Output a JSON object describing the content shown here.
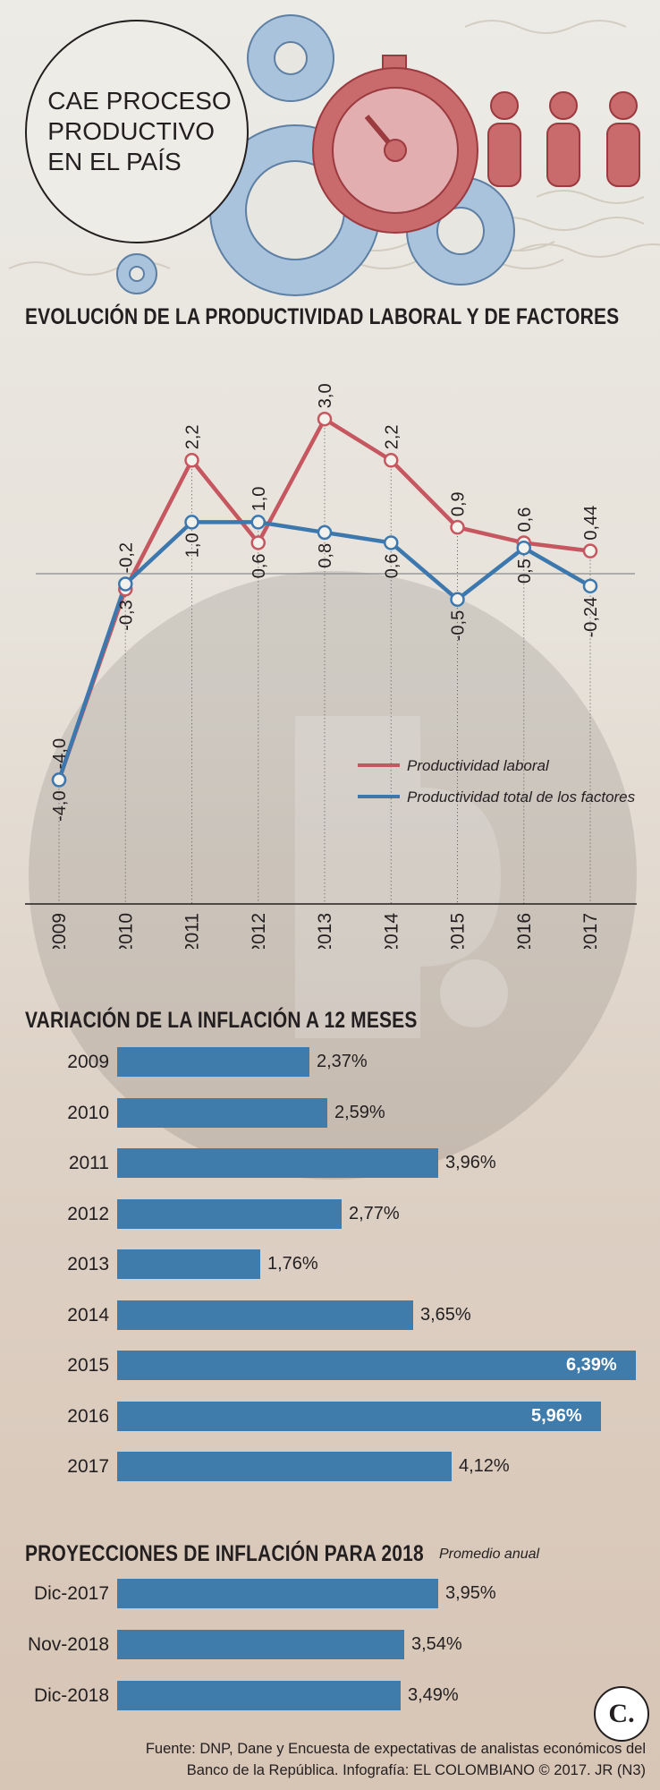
{
  "hero_title": [
    "CAE PROCESO",
    "PRODUCTIVO",
    "EN EL PAÍS"
  ],
  "colors": {
    "laboral": "#c6565f",
    "ptf": "#3c78ae",
    "bar": "#3f7bab",
    "hero_blue": "#a9c3dd",
    "hero_red": "#c96a6c"
  },
  "icons": [
    "gear-icon",
    "stopwatch-icon",
    "person-icon"
  ],
  "chart_data": [
    {
      "type": "line",
      "title": "EVOLUCIÓN DE LA PRODUCTIVIDAD LABORAL Y DE FACTORES",
      "x": [
        "2009",
        "2010",
        "2011",
        "2012",
        "2013",
        "2014",
        "2015",
        "2016",
        "2017"
      ],
      "series": [
        {
          "name": "Productividad laboral",
          "values": [
            -4.0,
            -0.3,
            2.2,
            0.6,
            3.0,
            2.2,
            0.9,
            0.6,
            0.44
          ],
          "labels": [
            "-4,0",
            "-0,3",
            "2,2",
            "0,6",
            "3,0",
            "2,2",
            "0,9",
            "0,6",
            "0,44"
          ]
        },
        {
          "name": "Productividad total de los factores",
          "values": [
            -4.0,
            -0.2,
            1.0,
            1.0,
            0.8,
            0.6,
            -0.5,
            0.5,
            -0.24
          ],
          "labels": [
            "-4,0",
            "-0,2",
            "1,0",
            "1,0",
            "0,8",
            "0,6",
            "-0,5",
            "0,5",
            "-0,24"
          ]
        }
      ],
      "ylim": [
        -5.1,
        3.0
      ],
      "legend": "bottom-right",
      "grid": "vertical dotted lines"
    },
    {
      "type": "bar",
      "orientation": "horizontal",
      "title": "VARIACIÓN DE LA INFLACIÓN A 12 MESES",
      "categories": [
        "2009",
        "2010",
        "2011",
        "2012",
        "2013",
        "2014",
        "2015",
        "2016",
        "2017"
      ],
      "values": [
        2.37,
        2.59,
        3.96,
        2.77,
        1.76,
        3.65,
        6.39,
        5.96,
        4.12
      ],
      "labels": [
        "2,37%",
        "2,59%",
        "3,96%",
        "2,77%",
        "1,76%",
        "3,65%",
        "6,39%",
        "5,96%",
        "4,12%"
      ],
      "xlim": [
        0,
        6.39
      ]
    },
    {
      "type": "bar",
      "orientation": "horizontal",
      "title": "PROYECCIONES DE INFLACIÓN PARA 2018",
      "subtitle": "Promedio anual",
      "categories": [
        "Dic-2017",
        "Nov-2018",
        "Dic-2018"
      ],
      "values": [
        3.95,
        3.54,
        3.49
      ],
      "labels": [
        "3,95%",
        "3,54%",
        "3,49%"
      ],
      "xlim": [
        0,
        6.39
      ]
    }
  ],
  "footer": {
    "line1": "Fuente: DNP, Dane y Encuesta de expectativas de analistas económicos del",
    "line2": "Banco de la República. Infografía: EL COLOMBIANO © 2017. JR (N3)",
    "logo": "C."
  }
}
